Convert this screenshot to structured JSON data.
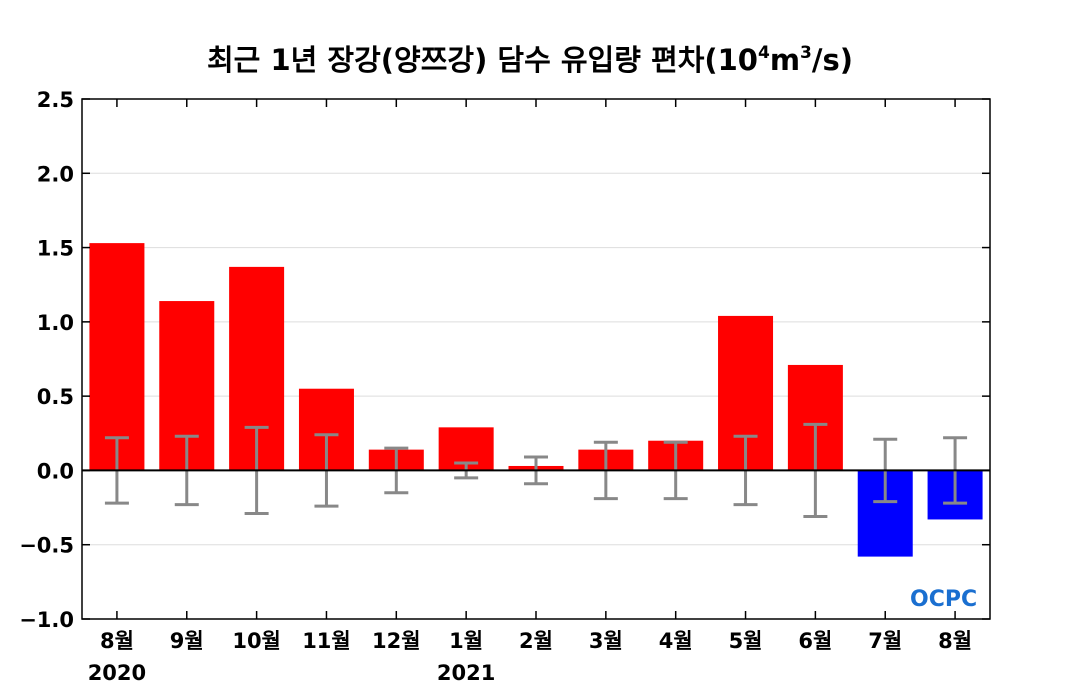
{
  "chart_data": {
    "type": "bar",
    "title_parts": [
      "최근 1년 장강(양쯔강) 담수 유입량 편차(10",
      "4",
      "m",
      "3",
      "/s)"
    ],
    "categories": [
      "8월",
      "9월",
      "10월",
      "11월",
      "12월",
      "1월",
      "2월",
      "3월",
      "4월",
      "5월",
      "6월",
      "7월",
      "8월"
    ],
    "year_labels": [
      {
        "index": 0,
        "text": "2020"
      },
      {
        "index": 5,
        "text": "2021"
      }
    ],
    "values": [
      1.53,
      1.14,
      1.37,
      0.55,
      0.14,
      0.29,
      0.03,
      0.14,
      0.2,
      1.04,
      0.71,
      -0.58,
      -0.33
    ],
    "error_range": [
      0.22,
      0.23,
      0.29,
      0.24,
      0.15,
      0.05,
      0.09,
      0.19,
      0.19,
      0.23,
      0.31,
      0.21,
      0.22
    ],
    "ylim": [
      -1.0,
      2.5
    ],
    "yticks": [
      "2.5",
      "2.0",
      "1.5",
      "1.0",
      "0.5",
      "0.0",
      "−0.5",
      "−1.0"
    ],
    "ytick_values": [
      2.5,
      2.0,
      1.5,
      1.0,
      0.5,
      0.0,
      -0.5,
      -1.0
    ],
    "grid": true,
    "positive_color": "#ff0000",
    "negative_color": "#0000ff",
    "error_bar_color": "#888888"
  },
  "logo_text": "OCPC"
}
